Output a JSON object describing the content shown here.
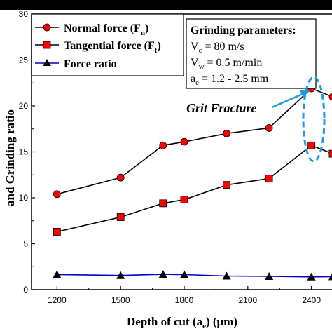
{
  "chart_data": {
    "type": "line",
    "x": [
      1200,
      1500,
      1700,
      1800,
      2000,
      2200,
      2400,
      2500
    ],
    "xticks": [
      "1200",
      "1500",
      "1800",
      "2100",
      "2400"
    ],
    "xlim": [
      1080,
      2520
    ],
    "ylim": [
      0,
      30
    ],
    "yticks": [
      "0",
      "5",
      "10",
      "15",
      "20",
      "25",
      "30"
    ],
    "xlabel_parts": [
      "Depth of cut (a",
      "e",
      ") (μm)"
    ],
    "ylabel_fragment": "and Grinding ratio",
    "series": [
      {
        "name_parts": [
          "Normal force (F",
          "n",
          ")"
        ],
        "marker": "circle",
        "color": "#ff0000",
        "line_color": "#000000",
        "values": [
          10.4,
          12.2,
          15.7,
          16.1,
          17.0,
          17.6,
          21.9,
          21.0
        ]
      },
      {
        "name_parts": [
          "Tangential force (F",
          "t",
          ")"
        ],
        "marker": "square",
        "color": "#ff0000",
        "line_color": "#000000",
        "values": [
          6.3,
          7.9,
          9.4,
          9.8,
          11.4,
          12.1,
          15.7,
          14.8
        ]
      },
      {
        "name_parts": [
          "Force ratio",
          "",
          ""
        ],
        "marker": "triangle",
        "color": "#000000",
        "line_color": "#0000cc",
        "values": [
          1.65,
          1.55,
          1.67,
          1.64,
          1.49,
          1.45,
          1.39,
          1.42
        ]
      }
    ],
    "legend_position": "top-left",
    "parameters": {
      "title": "Grinding parameters:",
      "lines": [
        {
          "pre": "V",
          "sub": "c",
          "post": " = 80 m/s"
        },
        {
          "pre": "V",
          "sub": "w",
          "post": " = 0.5 m/min"
        },
        {
          "pre": "a",
          "sub": "e",
          "post": " = 1.2 - 2.5 mm"
        }
      ]
    },
    "annotation": {
      "text": "Grit Fracture",
      "highlight_color": "#1e9be0"
    }
  }
}
